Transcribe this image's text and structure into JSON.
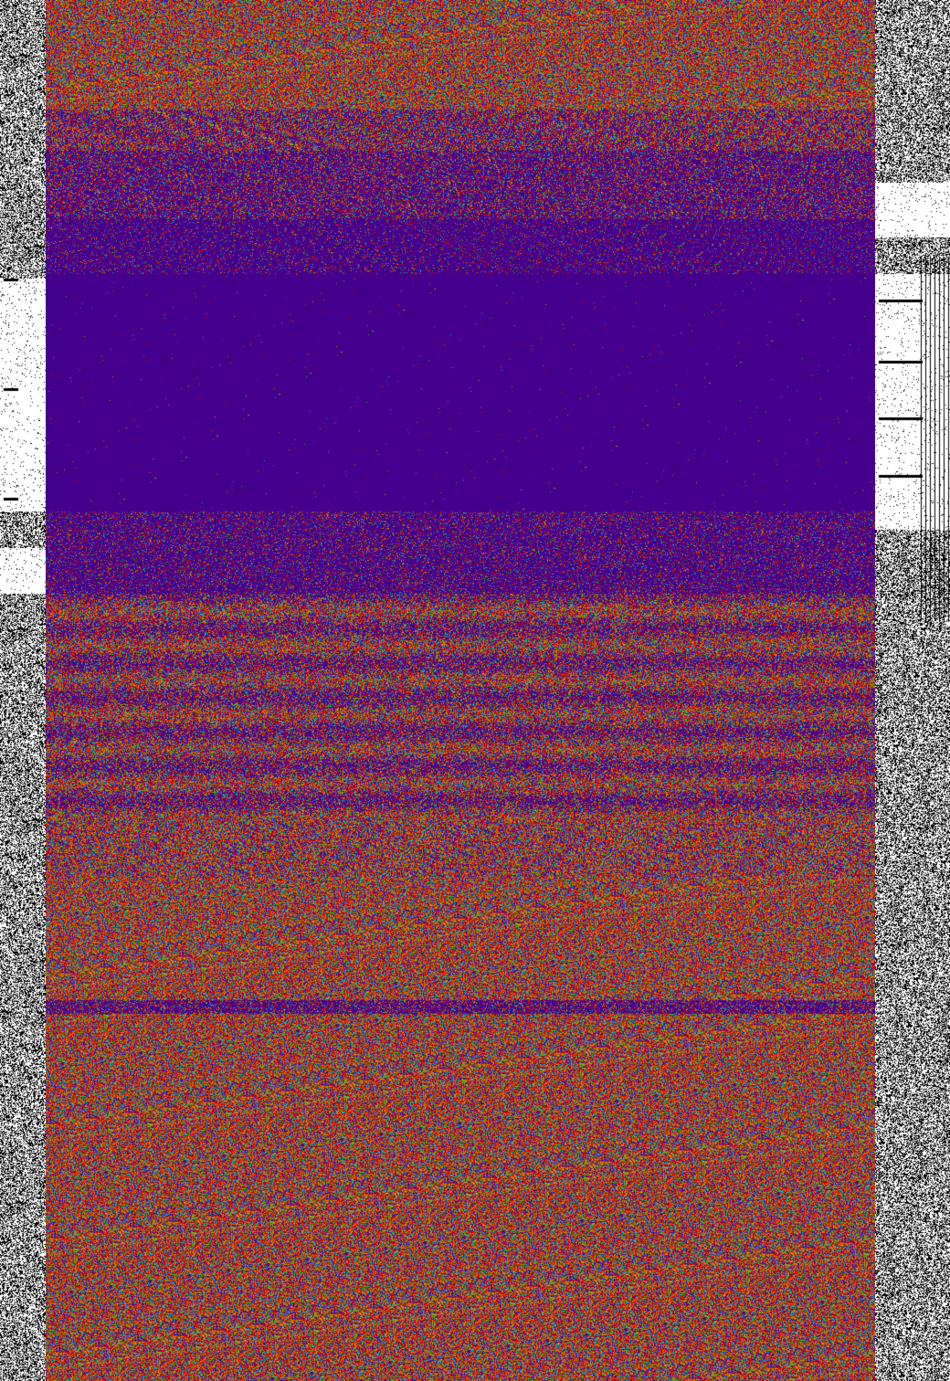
{
  "palette": {
    "background_band": "#44008c",
    "noise_colors": [
      "#e00000",
      "#e00000",
      "#cc2200",
      "#c8a000",
      "#30b000",
      "#00b0c0",
      "#2040e0",
      "#44008c",
      "#ff6000"
    ],
    "margin_ink": "#000000",
    "margin_paper": "#ffffff"
  }
}
